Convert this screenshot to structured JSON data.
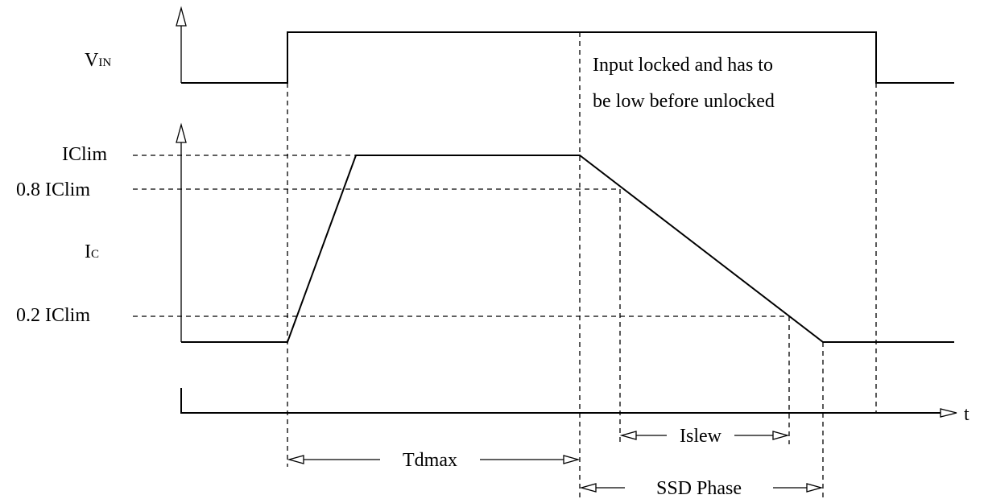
{
  "labels": {
    "vin": {
      "main": "V",
      "sub": "IN"
    },
    "iclim": "IClim",
    "iclim_08": "0.8 IClim",
    "ic": {
      "main": "I",
      "sub": "C"
    },
    "iclim_02": "0.2 IClim",
    "time": "t"
  },
  "note": {
    "line1": "Input locked and has to",
    "line2": "be low before unlocked"
  },
  "intervals": {
    "tdmax": "Tdmax",
    "islew": "Islew",
    "ssd_phase": "SSD Phase"
  }
}
